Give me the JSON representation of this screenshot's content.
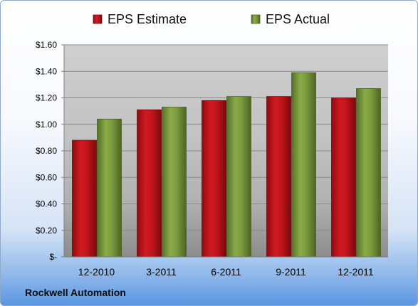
{
  "company": "Rockwell Automation",
  "colors": {
    "estimate": "#c8161c",
    "actual": "#7b9a3c"
  },
  "chart_data": {
    "type": "bar",
    "categories": [
      "12-2010",
      "3-2011",
      "6-2011",
      "9-2011",
      "12-2011"
    ],
    "series": [
      {
        "name": "EPS Estimate",
        "values": [
          0.88,
          1.11,
          1.18,
          1.21,
          1.2
        ]
      },
      {
        "name": "EPS Actual",
        "values": [
          1.04,
          1.13,
          1.21,
          1.39,
          1.27
        ]
      }
    ],
    "ylim": [
      0,
      1.6
    ],
    "yticks": [
      0,
      0.2,
      0.4,
      0.6,
      0.8,
      1.0,
      1.2,
      1.4,
      1.6
    ],
    "ytick_labels": [
      "$-",
      "$0.20",
      "$0.40",
      "$0.60",
      "$0.80",
      "$1.00",
      "$1.20",
      "$1.40",
      "$1.60"
    ],
    "legend": "top",
    "grid": true
  }
}
